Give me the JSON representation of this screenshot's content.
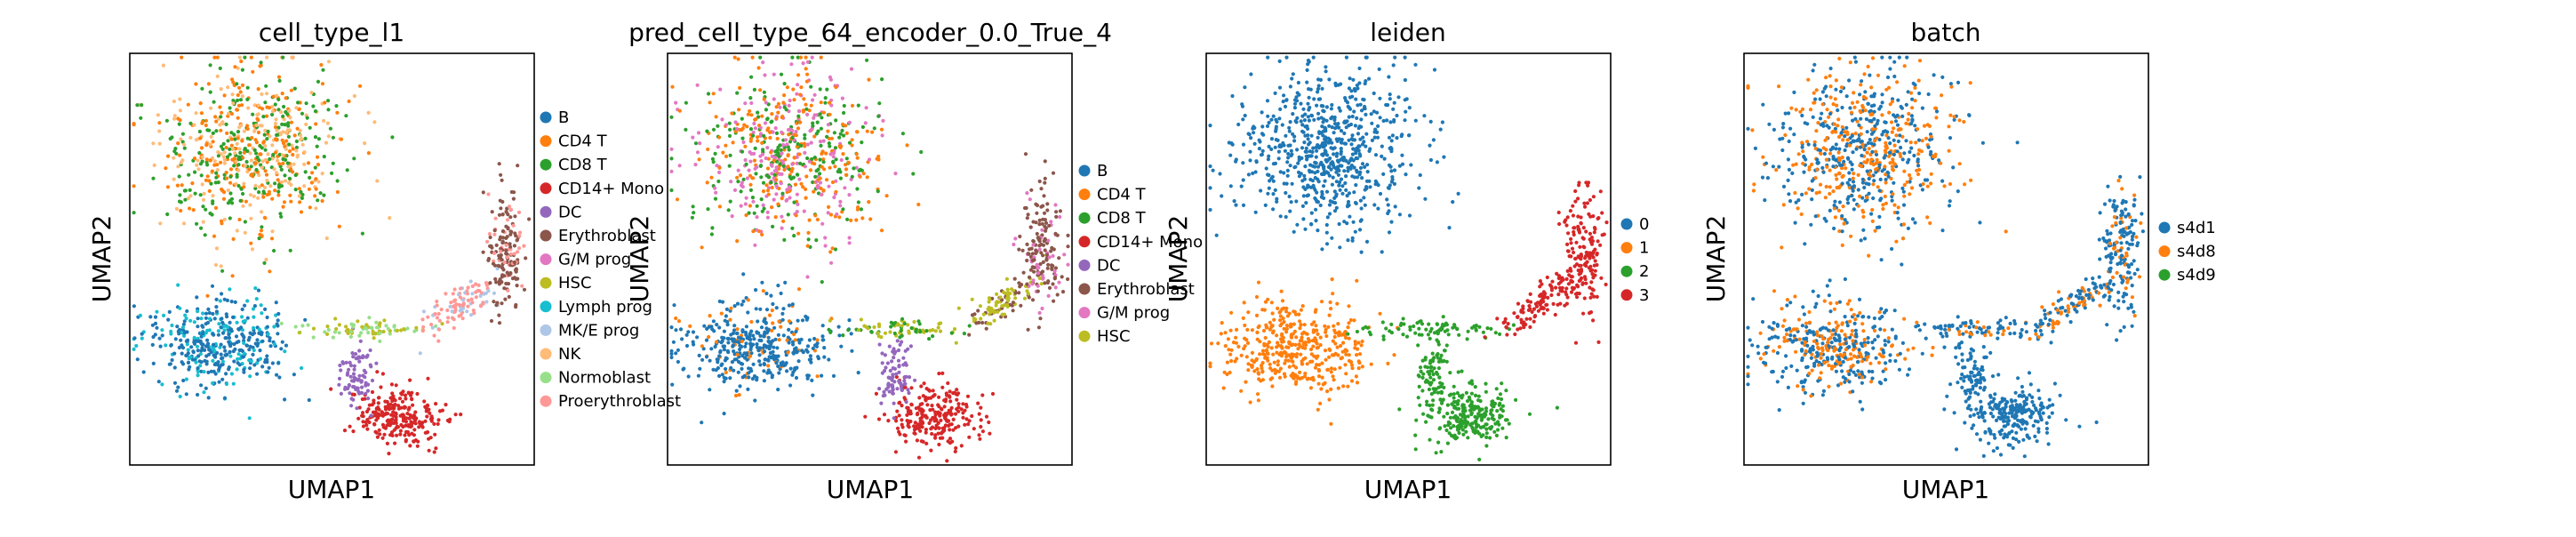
{
  "figure": {
    "description": "UMAP embedding panels"
  },
  "palette": [
    "#1f77b4",
    "#ff7f0e",
    "#2ca02c",
    "#d62728",
    "#9467bd",
    "#8c564b",
    "#e377c2",
    "#bcbd22",
    "#17becf",
    "#aec7e8",
    "#ffbb78",
    "#98df8a",
    "#ff9896"
  ],
  "chart_data": [
    {
      "type": "scatter",
      "title": "cell_type_l1",
      "xlabel": "UMAP1",
      "ylabel": "UMAP2",
      "legend_position": "right",
      "legend": [
        "B",
        "CD4 T",
        "CD8 T",
        "CD14+ Mono",
        "DC",
        "Erythroblast",
        "G/M prog",
        "HSC",
        "Lymph prog",
        "MK/E prog",
        "NK",
        "Normoblast",
        "Proerythroblast"
      ],
      "legend_colors": [
        "#1f77b4",
        "#ff7f0e",
        "#2ca02c",
        "#d62728",
        "#9467bd",
        "#8c564b",
        "#e377c2",
        "#bcbd22",
        "#17becf",
        "#aec7e8",
        "#ffbb78",
        "#98df8a",
        "#ff9896"
      ]
    },
    {
      "type": "scatter",
      "title": "pred_cell_type_64_encoder_0.0_True_4",
      "xlabel": "UMAP1",
      "ylabel": "UMAP2",
      "legend_position": "right",
      "legend": [
        "B",
        "CD4 T",
        "CD8 T",
        "CD14+ Mono",
        "DC",
        "Erythroblast",
        "G/M prog",
        "HSC"
      ],
      "legend_colors": [
        "#1f77b4",
        "#ff7f0e",
        "#2ca02c",
        "#d62728",
        "#9467bd",
        "#8c564b",
        "#e377c2",
        "#bcbd22"
      ]
    },
    {
      "type": "scatter",
      "title": "leiden",
      "xlabel": "UMAP1",
      "ylabel": "UMAP2",
      "legend_position": "right",
      "legend": [
        "0",
        "1",
        "2",
        "3"
      ],
      "legend_colors": [
        "#1f77b4",
        "#ff7f0e",
        "#2ca02c",
        "#d62728"
      ]
    },
    {
      "type": "scatter",
      "title": "batch",
      "xlabel": "UMAP1",
      "ylabel": "UMAP2",
      "legend_position": "right",
      "legend": [
        "s4d1",
        "s4d8",
        "s4d9"
      ],
      "legend_colors": [
        "#1f77b4",
        "#ff7f0e",
        "#2ca02c"
      ]
    }
  ]
}
